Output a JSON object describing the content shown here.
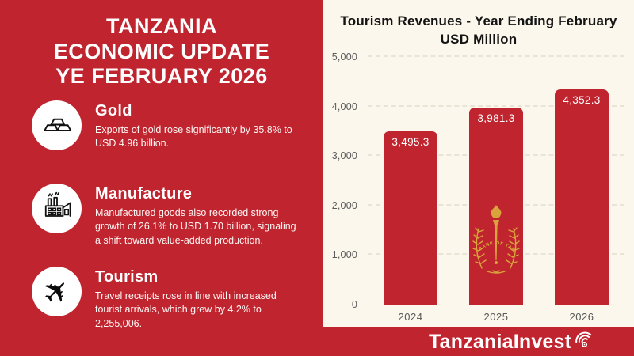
{
  "header": {
    "title_lines": [
      "TANZANIA",
      "ECONOMIC UPDATE",
      "YE FEBRUARY 2026"
    ]
  },
  "sections": [
    {
      "icon": "gold-bars-icon",
      "title": "Gold",
      "body": "Exports of gold rose significantly by 35.8% to USD 4.96 billion."
    },
    {
      "icon": "factory-icon",
      "title": "Manufacture",
      "body": "Manufactured goods also recorded strong growth of 26.1% to USD 1.70 billion, signaling a shift toward value-added production."
    },
    {
      "icon": "airplane-icon",
      "title": "Tourism",
      "body": "Travel receipts rose in line with increased tourist arrivals, which grew by 4.2% to 2,255,006."
    }
  ],
  "chart_data": {
    "type": "bar",
    "title": "Tourism Revenues - Year Ending February USD Million",
    "title_lines": [
      "Tourism Revenues - Year Ending February",
      "USD Million"
    ],
    "categories": [
      "2024",
      "2025",
      "2026"
    ],
    "values": [
      3495.3,
      3981.3,
      4352.3
    ],
    "value_labels": [
      "3,495.3",
      "3,981.3",
      "4,352.3"
    ],
    "ylim": [
      0,
      5000
    ],
    "yticks": [
      0,
      1000,
      2000,
      3000,
      4000,
      5000
    ],
    "ytick_labels": [
      "0",
      "1,000",
      "2,000",
      "3,000",
      "4,000",
      "5,000"
    ],
    "grid": "horizontal-dashed",
    "legend": "none",
    "bar_color": "#C0242E",
    "emblem": {
      "bar_index": 1,
      "text": "BANK OF TANZANIA",
      "color": "#D9A43C"
    }
  },
  "footer": {
    "brand": "TanzaniaInvest"
  },
  "colors": {
    "background_red": "#C0242E",
    "panel_cream": "#FBF7EC",
    "bar_red": "#C0242E",
    "emblem_gold": "#D9A43C",
    "text_dark": "#141414",
    "axis_gray": "#5B5B5B"
  }
}
